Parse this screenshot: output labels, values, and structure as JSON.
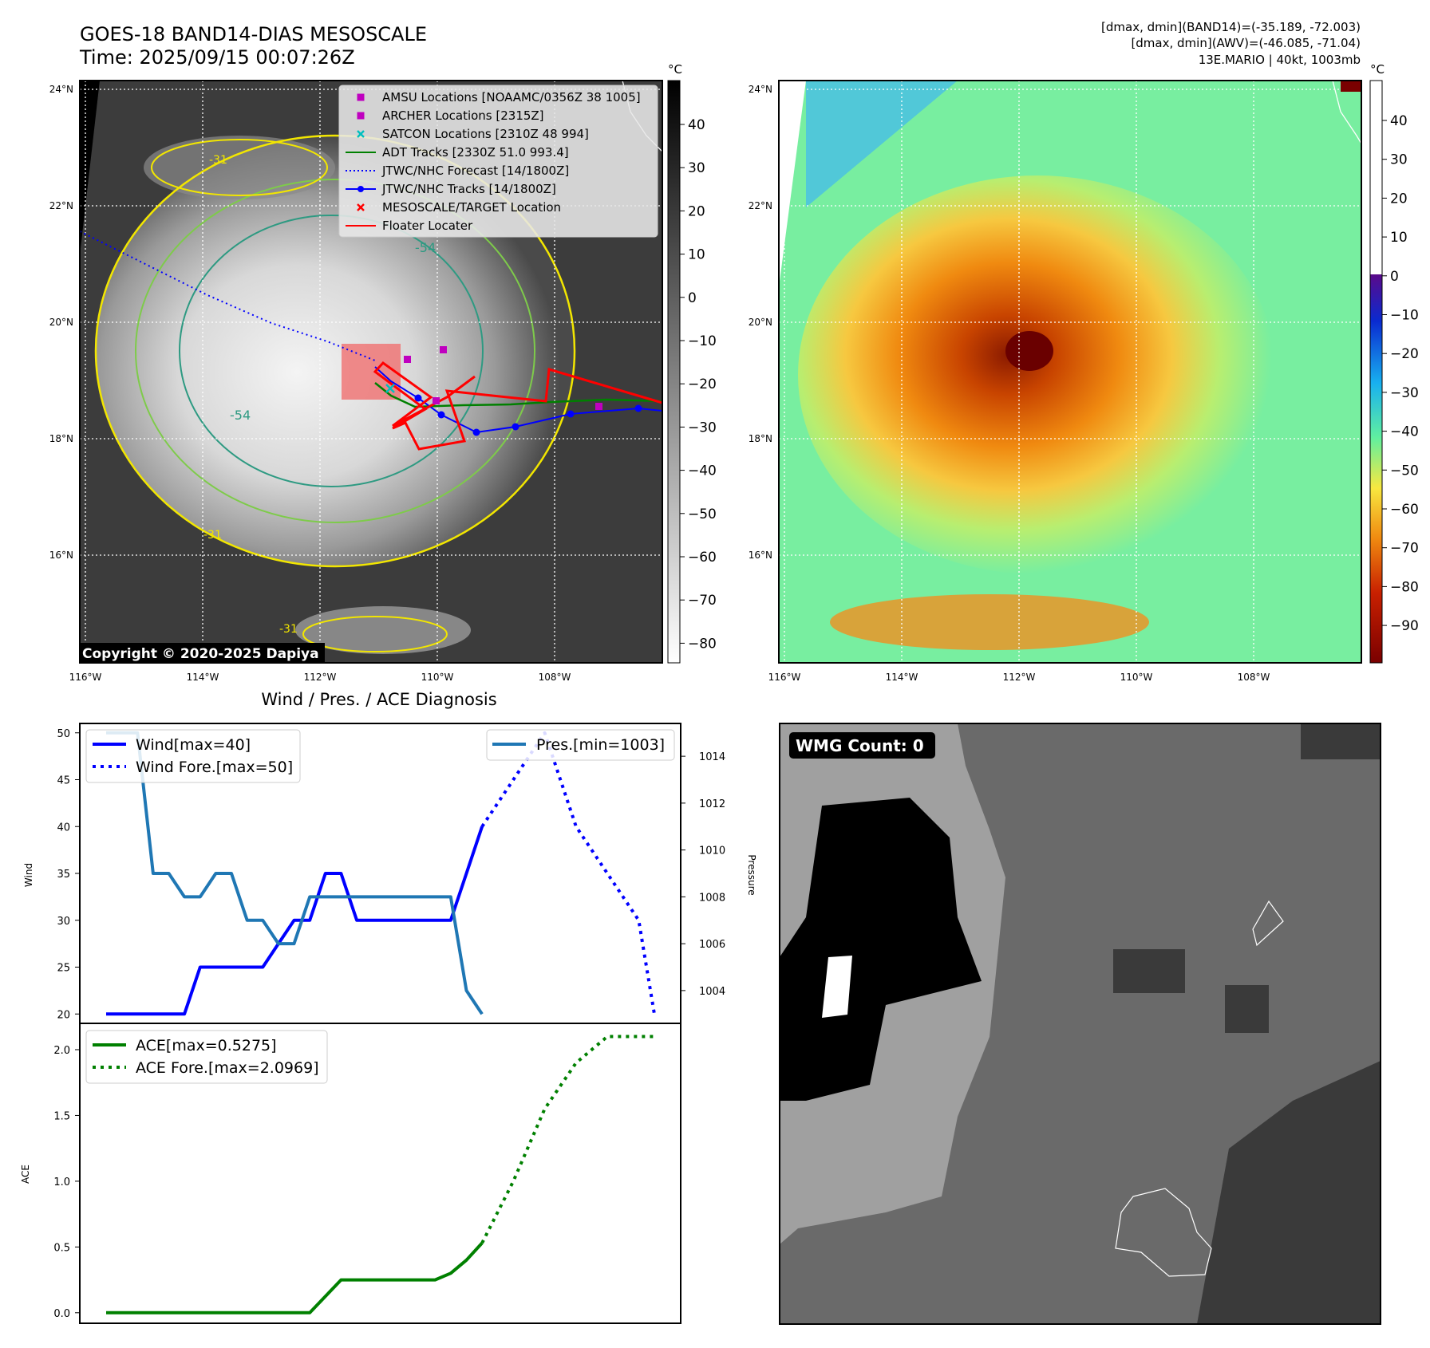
{
  "header": {
    "title": "GOES-18 BAND14-DIAS MESOSCALE",
    "time": "Time: 2025/09/15 00:07:26Z",
    "info_line1": "[dmax, dmin](BAND14)=(-35.189, -72.003)",
    "info_line2": "[dmax, dmin](AWV)=(-46.085, -71.04)",
    "info_line3": "13E.MARIO | 40kt, 1003mb",
    "copyright": "Copyright © 2020-2025 Dapiya"
  },
  "maps": {
    "lat_labels": [
      "24°N",
      "22°N",
      "20°N",
      "18°N",
      "16°N"
    ],
    "lon_labels": [
      "116°W",
      "114°W",
      "112°W",
      "110°W",
      "108°W"
    ],
    "contour_labels": [
      "-31",
      "-54",
      "-54",
      "-31",
      "-31"
    ]
  },
  "colorbar_ir": {
    "unit": "°C",
    "ticks": [
      "40",
      "30",
      "20",
      "10",
      "0",
      "−10",
      "−20",
      "−30",
      "−40",
      "−50",
      "−60",
      "−70",
      "−80"
    ]
  },
  "colorbar_awv": {
    "unit": "°C",
    "ticks": [
      "40",
      "30",
      "20",
      "10",
      "0",
      "−10",
      "−20",
      "−30",
      "−40",
      "−50",
      "−60",
      "−70",
      "−80",
      "−90"
    ]
  },
  "legend_map": [
    {
      "label": "AMSU Locations [NOAAMC/0356Z 38 1005]",
      "marker": "square",
      "color": "#bf00bf"
    },
    {
      "label": "ARCHER Locations [2315Z]",
      "marker": "square",
      "color": "#bf00bf"
    },
    {
      "label": "SATCON Locations [2310Z 48 994]",
      "marker": "x",
      "color": "#00bfbf"
    },
    {
      "label": "ADT Tracks [2330Z 51.0 993.4]",
      "marker": "line",
      "color": "#008000"
    },
    {
      "label": "JTWC/NHC Forecast [14/1800Z]",
      "marker": "dotted",
      "color": "#0000ff"
    },
    {
      "label": "JTWC/NHC Tracks [14/1800Z]",
      "marker": "line-dot",
      "color": "#0000ff"
    },
    {
      "label": "MESOSCALE/TARGET Location",
      "marker": "x",
      "color": "#ff0000"
    },
    {
      "label": "Floater Locater",
      "marker": "line",
      "color": "#ff0000"
    }
  ],
  "wmg": {
    "label": "WMG Count: 0"
  },
  "chart_data": [
    {
      "type": "line",
      "title": "Wind / Pres. / ACE Diagnosis",
      "ylabel": "Wind",
      "ylim": [
        19,
        51
      ],
      "yticks": [
        "50",
        "45",
        "40",
        "35",
        "30",
        "25",
        "20"
      ],
      "x": [
        0,
        1,
        2,
        3,
        4,
        5,
        6,
        7,
        8,
        9,
        10,
        11,
        12,
        13,
        14,
        15,
        16,
        17,
        18,
        19,
        20,
        21,
        22,
        23,
        24,
        25,
        26,
        27,
        28,
        29,
        30,
        31,
        32,
        33,
        34,
        35
      ],
      "series": [
        {
          "name": "Wind[max=40]",
          "style": "solid",
          "color": "#0000ff",
          "axis": "left",
          "x": [
            0,
            5,
            6,
            10,
            11,
            12,
            13,
            14,
            15,
            16,
            17,
            22,
            23,
            24
          ],
          "values": [
            20,
            20,
            25,
            25,
            27.5,
            30,
            30,
            35,
            35,
            30,
            30,
            30,
            35,
            40
          ]
        },
        {
          "name": "Wind Fore.[max=50]",
          "style": "dotted",
          "color": "#0000ff",
          "axis": "left",
          "x": [
            24,
            26,
            28,
            30,
            32,
            34,
            35
          ],
          "values": [
            40,
            45,
            50,
            40,
            35,
            30,
            20
          ]
        },
        {
          "name": "Pres.[min=1003]",
          "style": "solid",
          "color": "#1f77b4",
          "axis": "right",
          "x": [
            0,
            2,
            3,
            4,
            5,
            6,
            7,
            8,
            9,
            10,
            11,
            12,
            13,
            14,
            15,
            16,
            17,
            18,
            19,
            20,
            21,
            22,
            23,
            24
          ],
          "values": [
            1015,
            1015,
            1009,
            1009,
            1008,
            1008,
            1009,
            1009,
            1007,
            1007,
            1006,
            1006,
            1008,
            1008,
            1008,
            1008,
            1008,
            1008,
            1008,
            1008,
            1008,
            1008,
            1004,
            1003
          ]
        }
      ],
      "y2label": "Pressure",
      "y2lim": [
        1002.6,
        1015.4
      ],
      "y2ticks": [
        "1014",
        "1012",
        "1010",
        "1008",
        "1006",
        "1004"
      ],
      "legend": "top-left / top-right"
    },
    {
      "type": "line",
      "ylabel": "ACE",
      "ylim": [
        -0.08,
        2.2
      ],
      "yticks": [
        "2.0",
        "1.5",
        "1.0",
        "0.5",
        "0.0"
      ],
      "series": [
        {
          "name": "ACE[max=0.5275]",
          "style": "solid",
          "color": "#008000",
          "x": [
            0,
            13,
            15,
            21,
            22,
            23,
            24
          ],
          "values": [
            0,
            0,
            0.25,
            0.25,
            0.3,
            0.4,
            0.53
          ]
        },
        {
          "name": "ACE Fore.[max=2.0969]",
          "style": "dotted",
          "color": "#008000",
          "x": [
            24,
            26,
            28,
            30,
            32,
            34,
            35
          ],
          "values": [
            0.53,
            1.0,
            1.55,
            1.9,
            2.1,
            2.1,
            2.1
          ]
        }
      ],
      "legend": "top-left"
    }
  ]
}
